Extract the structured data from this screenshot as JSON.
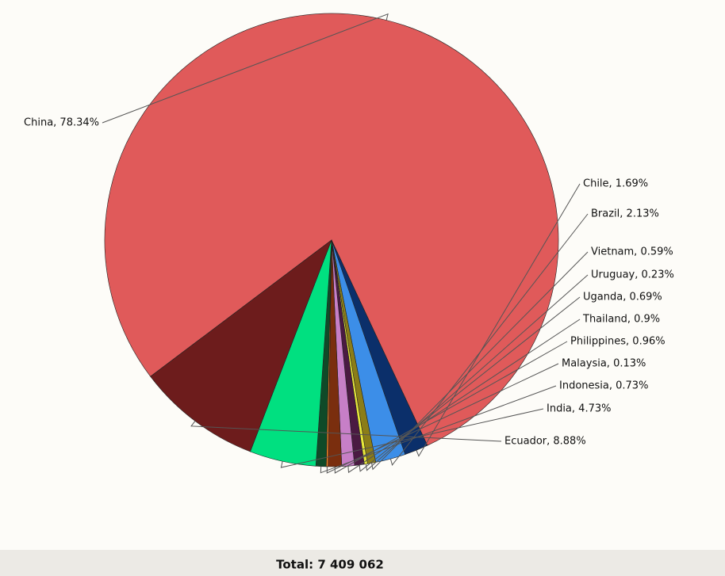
{
  "chart_data": {
    "type": "pie",
    "values": [
      78.34,
      1.69,
      2.13,
      0.59,
      0.23,
      0.69,
      0.9,
      0.96,
      0.13,
      0.73,
      4.73,
      8.88
    ],
    "value_labels": [
      "China, 78.34%",
      "Chile, 1.69%",
      "Brazil, 2.13%",
      "Vietnam, 0.59%",
      "Uruguay, 0.23%",
      "Uganda, 0.69%",
      "Thailand, 0.9%",
      "Philippines, 0.96%",
      "Malaysia, 0.13%",
      "Indonesia, 0.73%",
      "India, 4.73%",
      "Ecuador, 8.88%"
    ],
    "colors": [
      "#e05a5a",
      "#0b2f6a",
      "#3c8ee8",
      "#8b7d18",
      "#e8e83a",
      "#4a1a42",
      "#c77fc7",
      "#7a2e0e",
      "#f08020",
      "#0f4a28",
      "#00e080",
      "#6d1c1c"
    ],
    "total_label": "Total: 7 409 062"
  }
}
